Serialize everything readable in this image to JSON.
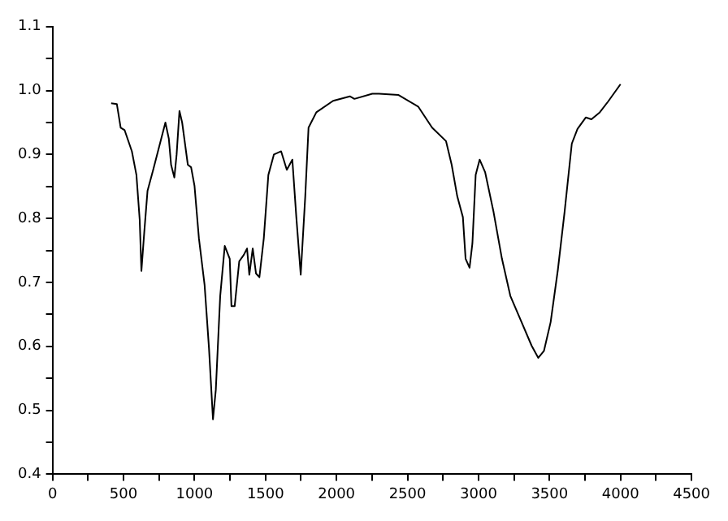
{
  "chart_data": {
    "type": "line",
    "x": [
      413,
      453,
      480,
      508,
      559,
      591,
      614,
      626,
      646,
      669,
      709,
      795,
      819,
      835,
      858,
      874,
      894,
      913,
      953,
      976,
      1000,
      1031,
      1071,
      1102,
      1130,
      1150,
      1181,
      1213,
      1248,
      1260,
      1283,
      1315,
      1347,
      1370,
      1386,
      1410,
      1433,
      1457,
      1488,
      1520,
      1559,
      1610,
      1650,
      1689,
      1717,
      1748,
      1780,
      1803,
      1858,
      1976,
      2094,
      2126,
      2252,
      2299,
      2437,
      2575,
      2673,
      2771,
      2811,
      2850,
      2890,
      2909,
      2937,
      2957,
      2980,
      3008,
      3047,
      3106,
      3165,
      3224,
      3303,
      3374,
      3421,
      3461,
      3508,
      3559,
      3606,
      3657,
      3697,
      3756,
      3795,
      3854,
      3913,
      4000
    ],
    "series": [
      {
        "color": "#000000",
        "values": [
          0.98,
          0.979,
          0.942,
          0.938,
          0.905,
          0.868,
          0.798,
          0.718,
          0.778,
          0.843,
          0.876,
          0.95,
          0.925,
          0.884,
          0.864,
          0.9,
          0.968,
          0.95,
          0.884,
          0.88,
          0.851,
          0.769,
          0.696,
          0.597,
          0.486,
          0.532,
          0.679,
          0.757,
          0.737,
          0.663,
          0.663,
          0.733,
          0.743,
          0.753,
          0.712,
          0.753,
          0.714,
          0.708,
          0.769,
          0.868,
          0.9,
          0.905,
          0.876,
          0.892,
          0.802,
          0.712,
          0.835,
          0.942,
          0.966,
          0.984,
          0.991,
          0.987,
          0.995,
          0.995,
          0.993,
          0.975,
          0.942,
          0.921,
          0.884,
          0.835,
          0.802,
          0.737,
          0.723,
          0.761,
          0.868,
          0.892,
          0.872,
          0.81,
          0.737,
          0.679,
          0.638,
          0.601,
          0.582,
          0.593,
          0.638,
          0.72,
          0.81,
          0.917,
          0.94,
          0.958,
          0.955,
          0.966,
          0.983,
          1.01
        ]
      }
    ],
    "xlim": [
      0,
      4500
    ],
    "xticks": [
      0,
      {
        "value": 250,
        "label": null
      },
      500,
      {
        "value": 750,
        "label": null
      },
      1000,
      {
        "value": 1250,
        "label": null
      },
      1500,
      {
        "value": 1750,
        "label": null
      },
      2000,
      {
        "value": 2250,
        "label": null
      },
      2500,
      {
        "value": 2750,
        "label": null
      },
      3000,
      {
        "value": 3250,
        "label": null
      },
      3500,
      {
        "value": 3750,
        "label": null
      },
      4000,
      {
        "value": 4250,
        "label": null
      },
      4500
    ],
    "ylim": [
      0.4,
      1.1
    ],
    "yticks": [
      {
        "value": 0.4,
        "label": "0.4"
      },
      {
        "value": 0.45,
        "label": null
      },
      {
        "value": 0.5,
        "label": "0.5"
      },
      {
        "value": 0.55,
        "label": null
      },
      {
        "value": 0.6,
        "label": "0.6"
      },
      {
        "value": 0.65,
        "label": null
      },
      {
        "value": 0.7,
        "label": "0.7"
      },
      {
        "value": 0.75,
        "label": null
      },
      {
        "value": 0.8,
        "label": "0.8"
      },
      {
        "value": 0.85,
        "label": null
      },
      {
        "value": 0.9,
        "label": "0.9"
      },
      {
        "value": 0.95,
        "label": null
      },
      {
        "value": 1.0,
        "label": "1.0"
      },
      {
        "value": 1.05,
        "label": null
      },
      {
        "value": 1.1,
        "label": "1.1"
      }
    ],
    "grid": false,
    "legend": false,
    "marker": "none",
    "line_style": "solid"
  }
}
